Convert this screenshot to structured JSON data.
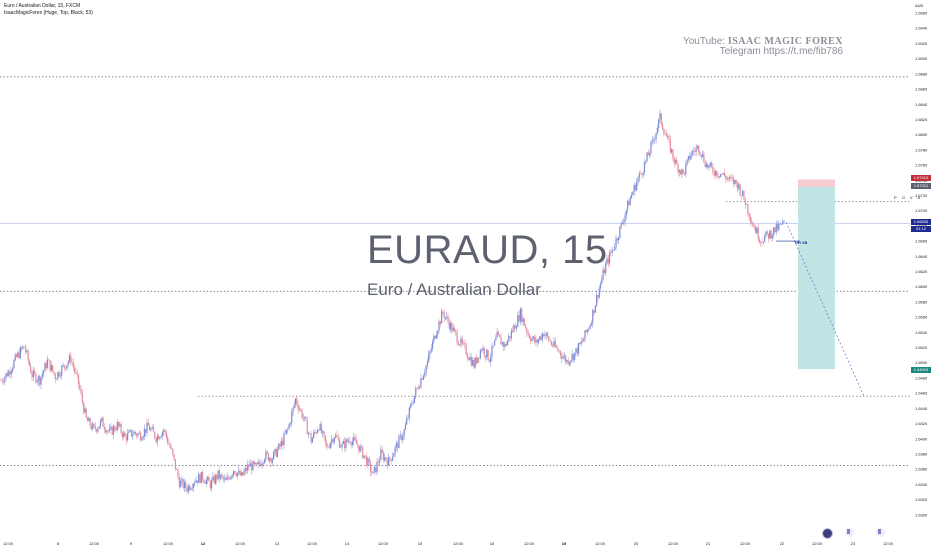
{
  "header": {
    "title": "Euro / Australian Dollar, 15, FXCM",
    "indicator": "IsaacMagicForex (Huge, Top, Black, 53)"
  },
  "watermark": {
    "symbol": "EURAUD, 15",
    "name": "Euro / Australian Dollar"
  },
  "promo": {
    "youtube_label": "YouTube:",
    "youtube_channel": "ISAAC MAGIC FOREX",
    "telegram": "Telegram https://t.me/fib786"
  },
  "currency_label": "AUD",
  "annotations": {
    "pova": "P O V A",
    "hh": "HH VB"
  },
  "price_tags": {
    "stop": "1.67410",
    "entry": "1.67312",
    "current": "1.66835",
    "countdown": "01:12",
    "target": "1.64916"
  },
  "colors": {
    "candle_up": "#7b8bd6",
    "candle_down": "#e38a9a",
    "stop_zone": "#f7ccd2",
    "target_zone": "#bfe6e4",
    "current_tag": "#1e2a8f",
    "stop_tag": "#c2313a",
    "entry_tag": "#5d6170",
    "target_tag": "#1d8a7e"
  },
  "chart_data": {
    "type": "line",
    "title": "Euro / Australian Dollar, 15, FXCM",
    "y_unit": "AUD",
    "ylim": [
      1.628,
      1.6964
    ],
    "y_ticks": [
      1.696,
      1.694,
      1.692,
      1.69,
      1.688,
      1.686,
      1.684,
      1.682,
      1.68,
      1.678,
      1.676,
      1.674,
      1.672,
      1.67,
      1.668,
      1.666,
      1.664,
      1.662,
      1.66,
      1.658,
      1.656,
      1.654,
      1.652,
      1.65,
      1.648,
      1.646,
      1.644,
      1.642,
      1.64,
      1.638,
      1.636,
      1.634,
      1.632,
      1.63
    ],
    "x_ticks": [
      "12:00",
      "8",
      "12:00",
      "9",
      "12:00",
      "12",
      "12:00",
      "13",
      "12:00",
      "14",
      "12:00",
      "15",
      "12:00",
      "16",
      "12:00",
      "19",
      "12:00",
      "20",
      "12:00",
      "21",
      "12:00",
      "22",
      "12:00",
      "23",
      "12:00"
    ],
    "grid": false,
    "series": [
      {
        "values": [
          1.6477,
          1.6488,
          1.6507,
          1.6522,
          1.6484,
          1.6478,
          1.6502,
          1.6482,
          1.6494,
          1.6506,
          1.6472,
          1.6425,
          1.6412,
          1.6422,
          1.6408,
          1.6418,
          1.6402,
          1.6408,
          1.6405,
          1.6416,
          1.6402,
          1.6412,
          1.6383,
          1.6343,
          1.6335,
          1.6346,
          1.635,
          1.634,
          1.6352,
          1.6343,
          1.636,
          1.635,
          1.6365,
          1.6362,
          1.6378,
          1.6375,
          1.639,
          1.6412,
          1.6452,
          1.6428,
          1.6398,
          1.6418,
          1.6388,
          1.6405,
          1.639,
          1.64,
          1.6392,
          1.6375,
          1.6352,
          1.638,
          1.637,
          1.639,
          1.641,
          1.6448,
          1.6475,
          1.65,
          1.6538,
          1.6566,
          1.6548,
          1.653,
          1.6515,
          1.6497,
          1.652,
          1.6506,
          1.6534,
          1.6522,
          1.6543,
          1.6565,
          1.6538,
          1.6526,
          1.654,
          1.6525,
          1.6515,
          1.6502,
          1.6512,
          1.6528,
          1.6552,
          1.6592,
          1.6628,
          1.6652,
          1.668,
          1.6712,
          1.6738,
          1.676,
          1.6788,
          1.6822,
          1.6792,
          1.6762,
          1.6748,
          1.6775,
          1.6784,
          1.676,
          1.6752,
          1.6748,
          1.674,
          1.6735,
          1.6712,
          1.6682,
          1.6662,
          1.6668,
          1.6676,
          1.6683
        ],
        "lines": [
          {
            "label": "resistance",
            "y": 1.6876
          },
          {
            "label": "pova",
            "y": 1.6712
          },
          {
            "label": "level",
            "y": 1.6594
          },
          {
            "label": "level",
            "y": 1.6456
          },
          {
            "label": "level",
            "y": 1.6365
          }
        ],
        "position": {
          "stop": 1.6741,
          "entry": 1.67312,
          "target": 1.64916
        },
        "projection": [
          1.6685,
          1.6456
        ]
      }
    ]
  }
}
